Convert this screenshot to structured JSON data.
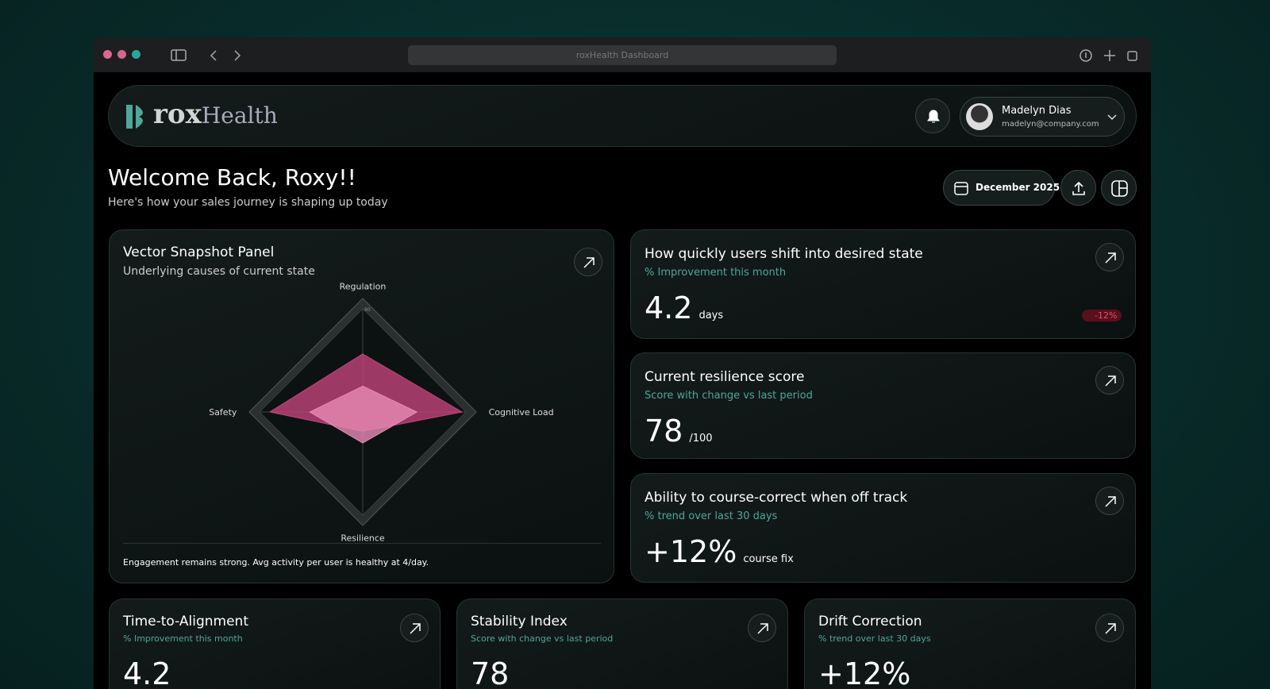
{
  "browser": {
    "address": "roxHealth Dashboard"
  },
  "header": {
    "logo_bold": "rox",
    "logo_light": "Health",
    "user_name": "Madelyn Dias",
    "user_email": "madelyn@company.com"
  },
  "welcome": {
    "title": "Welcome Back, Roxy!!",
    "subtitle": "Here's how your sales journey is shaping up today",
    "date": "December 2025"
  },
  "panel": {
    "title": "Vector Snapshot Panel",
    "subtitle": "Underlying causes of current state",
    "footer": "Engagement remains strong. Avg activity per user is healthy at 4/day."
  },
  "chart_data": {
    "type": "radar",
    "categories": [
      "Regulation",
      "Cognitive Load",
      "Resilience",
      "Safety"
    ],
    "rlim": [
      0,
      80
    ],
    "rticks": [
      56,
      64,
      72,
      80
    ],
    "series": [
      {
        "color": "#c2447a",
        "values": [
          45,
          77,
          15,
          72
        ]
      },
      {
        "color": "#e88bb5",
        "values": [
          20,
          42,
          24,
          41
        ]
      }
    ]
  },
  "cards": [
    {
      "title": "How quickly users shift into desired state",
      "subtitle": "% Improvement this month",
      "value": "4.2",
      "unit": "days",
      "badge": "-12%"
    },
    {
      "title": "Current resilience score",
      "subtitle": "Score with change vs last period",
      "value": "78",
      "unit": "/100"
    },
    {
      "title": "Ability to course-correct when off track",
      "subtitle": "% trend over last 30 days",
      "value": "+12%",
      "unit": "course fix"
    }
  ],
  "bottom_cards": [
    {
      "title": "Time-to-Alignment",
      "subtitle": "% Improvement this month",
      "value": "4.2"
    },
    {
      "title": "Stability Index",
      "subtitle": "Score with change vs last period",
      "value": "78"
    },
    {
      "title": "Drift Correction",
      "subtitle": "% trend over last 30 days",
      "value": "+12%"
    }
  ]
}
